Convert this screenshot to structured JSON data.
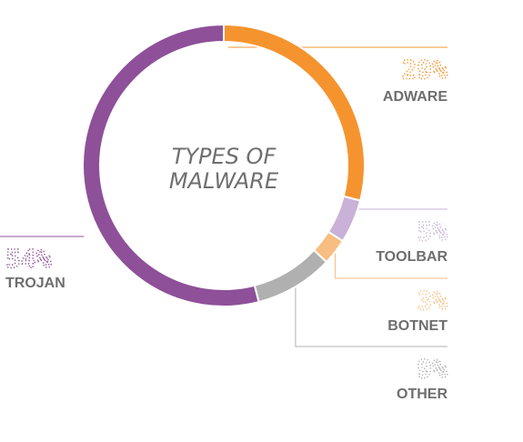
{
  "chart_data": {
    "type": "pie",
    "title": "TYPES OF MALWARE",
    "slices": [
      {
        "label": "ADWARE",
        "value": 29,
        "display": "29%",
        "color": "#f5942f",
        "side": "right"
      },
      {
        "label": "TOOLBAR",
        "value": 5,
        "display": "5%",
        "color": "#c9b1d8",
        "side": "right"
      },
      {
        "label": "BOTNET",
        "value": 3,
        "display": "3%",
        "color": "#f8bd80",
        "side": "right"
      },
      {
        "label": "OTHER",
        "value": 9,
        "display": "9%",
        "color": "#b0b0b0",
        "side": "right"
      },
      {
        "label": "TROJAN",
        "value": 54,
        "display": "54%",
        "color": "#8e5099",
        "side": "left"
      }
    ],
    "style": "donut",
    "legend": "none"
  }
}
